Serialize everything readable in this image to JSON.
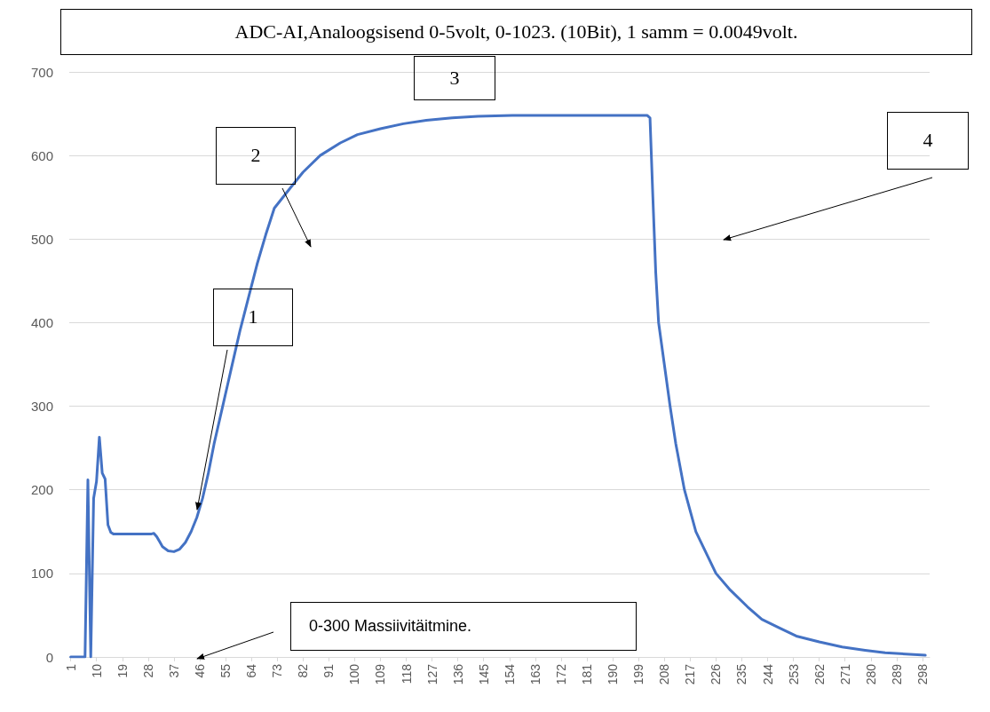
{
  "chart_data": {
    "type": "line",
    "title": "ADC-AI,Analoogsisend 0-5volt, 0-1023. (10Bit), 1 samm = 0.0049volt.",
    "x": [
      1,
      6,
      7,
      8,
      9,
      10,
      11,
      12,
      13,
      14,
      15,
      16,
      29,
      30,
      31,
      32,
      33,
      35,
      37,
      39,
      41,
      43,
      45,
      47,
      49,
      51,
      54,
      57,
      60,
      63,
      66,
      69,
      72,
      78,
      82,
      88,
      95,
      101,
      109,
      117,
      125,
      134,
      143,
      155,
      202,
      203,
      204,
      205,
      206,
      208,
      210,
      212,
      215,
      219,
      226,
      231,
      237,
      242,
      248,
      254,
      262,
      270,
      278,
      285,
      299
    ],
    "series": [
      {
        "color": "#4472c4",
        "values": [
          0,
          0,
          212,
          0,
          190,
          210,
          263,
          220,
          213,
          158,
          149,
          147,
          147,
          148,
          144,
          138,
          132,
          127,
          126,
          129,
          137,
          150,
          167,
          190,
          220,
          255,
          300,
          345,
          390,
          430,
          470,
          505,
          537,
          563,
          580,
          600,
          615,
          625,
          632,
          638,
          642,
          645,
          647,
          648,
          648,
          645,
          550,
          460,
          400,
          350,
          300,
          255,
          200,
          150,
          100,
          80,
          60,
          45,
          35,
          25,
          18,
          12,
          8,
          5,
          2
        ]
      }
    ],
    "xlim": [
      0.5,
      300.5
    ],
    "xticks": [
      1,
      10,
      19,
      28,
      37,
      46,
      55,
      64,
      73,
      82,
      91,
      100,
      109,
      118,
      127,
      136,
      145,
      154,
      163,
      172,
      181,
      190,
      199,
      208,
      217,
      226,
      235,
      244,
      253,
      262,
      271,
      280,
      289,
      298
    ],
    "ylim": [
      0,
      700
    ],
    "yticks": [
      0,
      100,
      200,
      300,
      400,
      500,
      600,
      700
    ],
    "grid": "y",
    "marker": "none",
    "line_style": "solid",
    "annotations": [
      "1",
      "2",
      "3",
      "4",
      "0-300 Massiivitäitmine."
    ]
  }
}
